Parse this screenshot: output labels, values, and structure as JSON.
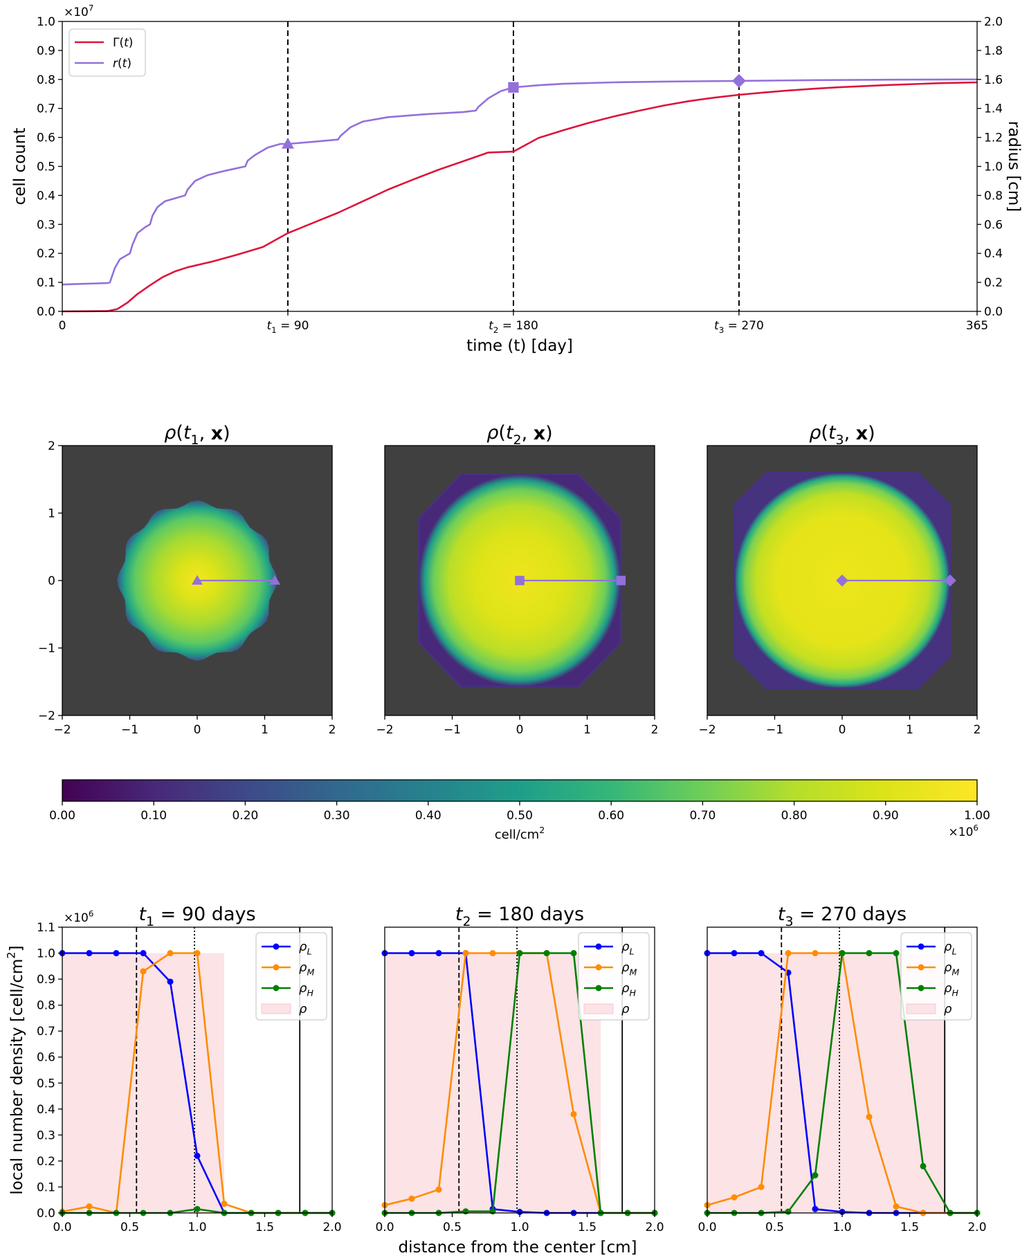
{
  "chart_data": [
    {
      "type": "line",
      "id": "growth",
      "xlabel": "time (t) [day]",
      "ylabel": "cell count",
      "ylabel_right": "radius [cm]",
      "y_multiplier": "×10",
      "y_multiplier_exp": "7",
      "xlim": [
        0,
        365
      ],
      "ylim": [
        0,
        1.0
      ],
      "ylim_right": [
        0,
        2.0
      ],
      "xticks": [
        {
          "value": 0,
          "label": "0"
        },
        {
          "value": 90,
          "label": "t",
          "sub": "1",
          "rest": " = 90"
        },
        {
          "value": 180,
          "label": "t",
          "sub": "2",
          "rest": " = 180"
        },
        {
          "value": 270,
          "label": "t",
          "sub": "3",
          "rest": " = 270"
        },
        {
          "value": 365,
          "label": "365"
        }
      ],
      "yticks": [
        "0.0",
        "0.1",
        "0.2",
        "0.3",
        "0.4",
        "0.5",
        "0.6",
        "0.7",
        "0.8",
        "0.9",
        "1.0"
      ],
      "yticks_right": [
        "0.0",
        "0.2",
        "0.4",
        "0.6",
        "0.8",
        "1.0",
        "1.2",
        "1.4",
        "1.6",
        "1.8",
        "2.0"
      ],
      "vlines": [
        90,
        180,
        270
      ],
      "legend": [
        {
          "label": "Γ(t)",
          "color": "#dc143c"
        },
        {
          "label": "r(t)",
          "color": "#9370db"
        }
      ],
      "series": [
        {
          "name": "Γ(t)",
          "axis": "left",
          "color": "#dc143c",
          "points": [
            [
              0,
              0
            ],
            [
              18,
              0.001
            ],
            [
              22,
              0.008
            ],
            [
              26,
              0.03
            ],
            [
              30,
              0.06
            ],
            [
              35,
              0.09
            ],
            [
              40,
              0.118
            ],
            [
              45,
              0.138
            ],
            [
              50,
              0.152
            ],
            [
              60,
              0.172
            ],
            [
              70,
              0.196
            ],
            [
              80,
              0.222
            ],
            [
              90,
              0.27
            ],
            [
              100,
              0.305
            ],
            [
              110,
              0.34
            ],
            [
              120,
              0.38
            ],
            [
              130,
              0.42
            ],
            [
              140,
              0.455
            ],
            [
              150,
              0.488
            ],
            [
              160,
              0.518
            ],
            [
              170,
              0.548
            ],
            [
              180,
              0.551
            ],
            [
              190,
              0.598
            ],
            [
              200,
              0.625
            ],
            [
              210,
              0.65
            ],
            [
              220,
              0.672
            ],
            [
              230,
              0.692
            ],
            [
              240,
              0.71
            ],
            [
              250,
              0.725
            ],
            [
              260,
              0.737
            ],
            [
              270,
              0.747
            ],
            [
              280,
              0.755
            ],
            [
              290,
              0.762
            ],
            [
              300,
              0.768
            ],
            [
              310,
              0.773
            ],
            [
              320,
              0.777
            ],
            [
              330,
              0.781
            ],
            [
              340,
              0.784
            ],
            [
              350,
              0.787
            ],
            [
              365,
              0.79
            ]
          ]
        },
        {
          "name": "r(t)",
          "axis": "right",
          "color": "#9370db",
          "points": [
            [
              0,
              0.185
            ],
            [
              18,
              0.195
            ],
            [
              19,
              0.2
            ],
            [
              21,
              0.3
            ],
            [
              23,
              0.36
            ],
            [
              26,
              0.39
            ],
            [
              27,
              0.4
            ],
            [
              28,
              0.46
            ],
            [
              30,
              0.54
            ],
            [
              33,
              0.58
            ],
            [
              35,
              0.6
            ],
            [
              36,
              0.66
            ],
            [
              38,
              0.72
            ],
            [
              41,
              0.76
            ],
            [
              45,
              0.78
            ],
            [
              49,
              0.8
            ],
            [
              50,
              0.84
            ],
            [
              53,
              0.9
            ],
            [
              58,
              0.94
            ],
            [
              65,
              0.97
            ],
            [
              73,
              1.0
            ],
            [
              74,
              1.04
            ],
            [
              77,
              1.08
            ],
            [
              82,
              1.13
            ],
            [
              87,
              1.155
            ],
            [
              90,
              1.155
            ],
            [
              100,
              1.17
            ],
            [
              110,
              1.185
            ],
            [
              111,
              1.21
            ],
            [
              115,
              1.27
            ],
            [
              120,
              1.31
            ],
            [
              130,
              1.34
            ],
            [
              145,
              1.36
            ],
            [
              160,
              1.375
            ],
            [
              165,
              1.385
            ],
            [
              166,
              1.41
            ],
            [
              170,
              1.47
            ],
            [
              175,
              1.52
            ],
            [
              180,
              1.545
            ],
            [
              190,
              1.56
            ],
            [
              200,
              1.57
            ],
            [
              220,
              1.58
            ],
            [
              240,
              1.585
            ],
            [
              270,
              1.59
            ],
            [
              300,
              1.595
            ],
            [
              330,
              1.598
            ],
            [
              365,
              1.6
            ]
          ]
        }
      ],
      "markers": [
        {
          "x": 90,
          "y": 1.155,
          "shape": "triangle"
        },
        {
          "x": 180,
          "y": 1.545,
          "shape": "square"
        },
        {
          "x": 270,
          "y": 1.59,
          "shape": "diamond"
        }
      ]
    },
    {
      "type": "heatmap",
      "id": "density-maps",
      "xlim": [
        -2,
        2
      ],
      "ylim": [
        -2,
        2
      ],
      "xticks": [
        "−2",
        "−1",
        "0",
        "1",
        "2"
      ],
      "yticks": [
        "2",
        "1",
        "0",
        "−1",
        "−2"
      ],
      "panels": [
        {
          "title_main": "ρ(t",
          "title_sub": "1",
          "title_rest": ", x)",
          "radius": 1.15,
          "marker": "triangle",
          "shape": "round"
        },
        {
          "title_main": "ρ(t",
          "title_sub": "2",
          "title_rest": ", x)",
          "radius": 1.5,
          "marker": "square",
          "shape": "octagon"
        },
        {
          "title_main": "ρ(t",
          "title_sub": "3",
          "title_rest": ", x)",
          "radius": 1.6,
          "marker": "diamond",
          "shape": "octagon-wide"
        }
      ],
      "colorbar": {
        "ticks": [
          "0.00",
          "0.10",
          "0.20",
          "0.30",
          "0.40",
          "0.50",
          "0.60",
          "0.70",
          "0.80",
          "0.90",
          "1.00"
        ],
        "label": "cell/cm",
        "label_exp": "2",
        "multiplier": "×10",
        "multiplier_exp": "6"
      }
    },
    {
      "type": "line",
      "id": "profiles",
      "xlabel": "distance from the center [cm]",
      "ylabel": "local number density [cell/cm",
      "ylabel_exp": "2",
      "ylabel_end": "]",
      "y_multiplier": "×10",
      "y_multiplier_exp": "6",
      "xlim": [
        0,
        2.0
      ],
      "ylim": [
        0,
        1.1
      ],
      "xticks": [
        "0.0",
        "0.5",
        "1.0",
        "1.5",
        "2.0"
      ],
      "yticks": [
        "0.0",
        "0.1",
        "0.2",
        "0.3",
        "0.4",
        "0.5",
        "0.6",
        "0.7",
        "0.8",
        "0.9",
        "1.0",
        "1.1"
      ],
      "x": [
        0.0,
        0.2,
        0.4,
        0.6,
        0.8,
        1.0,
        1.2,
        1.4,
        1.6,
        1.8,
        2.0
      ],
      "vlines": {
        "dashed": 0.55,
        "dotted": 0.98,
        "solid": 1.76
      },
      "legend": [
        {
          "label": "ρ",
          "sub": "L",
          "color": "#0000ff",
          "kind": "line"
        },
        {
          "label": "ρ",
          "sub": "M",
          "color": "#ff8c00",
          "kind": "line"
        },
        {
          "label": "ρ",
          "sub": "H",
          "color": "#008000",
          "kind": "line"
        },
        {
          "label": "ρ",
          "sub": "",
          "color": "#fbe3e6",
          "kind": "patch"
        }
      ],
      "panels": [
        {
          "title_main": "t",
          "title_sub": "1",
          "title_rest": " = 90 days",
          "rho_L": [
            1.0,
            1.0,
            1.0,
            1.0,
            0.89,
            0.22,
            0.0,
            0.0,
            0.0,
            0.0,
            0.0
          ],
          "rho_M": [
            0.005,
            0.025,
            0.0,
            0.93,
            1.0,
            1.0,
            0.035,
            0.0,
            0.0,
            0.0,
            0.0
          ],
          "rho_H": [
            0.0,
            0.0,
            0.0,
            0.0,
            0.0,
            0.015,
            0.0,
            0.0,
            0.0,
            0.0,
            0.0
          ],
          "rho_x": [
            0.0,
            1.2
          ],
          "rho_y": [
            1.0,
            1.0
          ]
        },
        {
          "title_main": "t",
          "title_sub": "2",
          "title_rest": " = 180 days",
          "rho_L": [
            1.0,
            1.0,
            1.0,
            1.0,
            0.015,
            0.004,
            0.0,
            0.0,
            0.0,
            0.0,
            0.0
          ],
          "rho_M": [
            0.03,
            0.055,
            0.09,
            1.0,
            1.0,
            1.0,
            1.0,
            0.38,
            0.0,
            0.0,
            0.0
          ],
          "rho_H": [
            0.0,
            0.0,
            0.0,
            0.006,
            0.006,
            1.0,
            1.0,
            1.0,
            0.0,
            0.0,
            0.0
          ],
          "rho_x": [
            0.0,
            1.6
          ],
          "rho_y": [
            1.0,
            1.0
          ]
        },
        {
          "title_main": "t",
          "title_sub": "3",
          "title_rest": " = 270 days",
          "rho_L": [
            1.0,
            1.0,
            1.0,
            0.925,
            0.015,
            0.004,
            0.0,
            0.0,
            0.0,
            0.0,
            0.0
          ],
          "rho_M": [
            0.03,
            0.06,
            0.1,
            1.0,
            1.0,
            1.0,
            0.37,
            0.025,
            0.0,
            0.0,
            0.0
          ],
          "rho_H": [
            0.0,
            0.0,
            0.0,
            0.005,
            0.145,
            1.0,
            1.0,
            1.0,
            0.18,
            0.0,
            0.0
          ],
          "rho_x": [
            0.0,
            1.76
          ],
          "rho_y": [
            1.0,
            1.0
          ]
        }
      ]
    }
  ]
}
